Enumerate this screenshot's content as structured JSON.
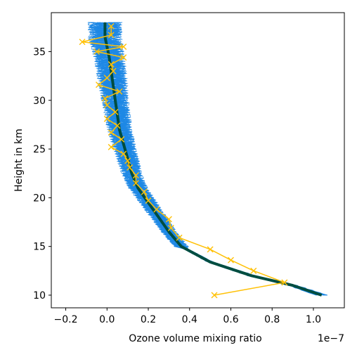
{
  "chart_data": {
    "type": "line",
    "xlabel": "Ozone volume mixing ratio",
    "ylabel": "Height in km",
    "x_scale_label": "1e−7",
    "x_scale": 1e-07,
    "xlim": [
      -0.27,
      1.15
    ],
    "ylim": [
      8.7,
      39.0
    ],
    "xticks": [
      -0.2,
      0.0,
      0.2,
      0.4,
      0.6,
      0.8,
      1.0
    ],
    "xtick_labels": [
      "−0.2",
      "0.0",
      "0.2",
      "0.4",
      "0.6",
      "0.8",
      "1.0"
    ],
    "yticks": [
      10,
      15,
      20,
      25,
      30,
      35
    ],
    "ytick_labels": [
      "10",
      "15",
      "20",
      "25",
      "30",
      "35"
    ],
    "grid": false,
    "colors": {
      "true_profile": "#004d40",
      "ensemble": "#1e88e5",
      "retrieval": "#ffc107"
    },
    "true_profile": {
      "x": [
        1.04,
        0.9,
        0.7,
        0.5,
        0.36,
        0.3,
        0.25,
        0.2,
        0.15,
        0.12,
        0.1,
        0.08,
        0.06,
        0.05,
        0.04,
        0.03,
        0.02,
        0.01,
        0.0,
        -0.01,
        -0.01,
        -0.01,
        -0.01
      ],
      "y": [
        10.0,
        11.0,
        12.0,
        13.4,
        15.0,
        16.5,
        18.0,
        19.5,
        21.0,
        22.5,
        24.0,
        25.5,
        27.0,
        28.5,
        30.0,
        31.5,
        33.0,
        34.5,
        35.5,
        36.5,
        37.0,
        37.5,
        38.0
      ]
    },
    "retrieval": {
      "x": [
        0.52,
        0.86,
        0.71,
        0.6,
        0.5,
        0.35,
        0.31,
        0.3,
        0.24,
        0.2,
        0.18,
        0.14,
        0.14,
        0.11,
        0.1,
        0.08,
        0.02,
        0.07,
        0.02,
        0.05,
        0.0,
        0.04,
        0.0,
        -0.01,
        0.06,
        -0.04,
        0.0,
        0.03,
        0.02,
        0.08,
        -0.05,
        0.08,
        -0.12,
        0.02,
        0.02
      ],
      "y": [
        10.0,
        11.3,
        12.5,
        13.6,
        14.7,
        15.9,
        16.9,
        17.8,
        18.8,
        19.7,
        20.6,
        21.5,
        22.3,
        23.1,
        23.8,
        24.5,
        25.2,
        26.0,
        26.7,
        27.4,
        28.1,
        28.8,
        29.5,
        30.2,
        30.9,
        31.6,
        32.3,
        33.0,
        33.7,
        34.4,
        35.0,
        35.5,
        36.0,
        36.7,
        37.6
      ]
    }
  }
}
